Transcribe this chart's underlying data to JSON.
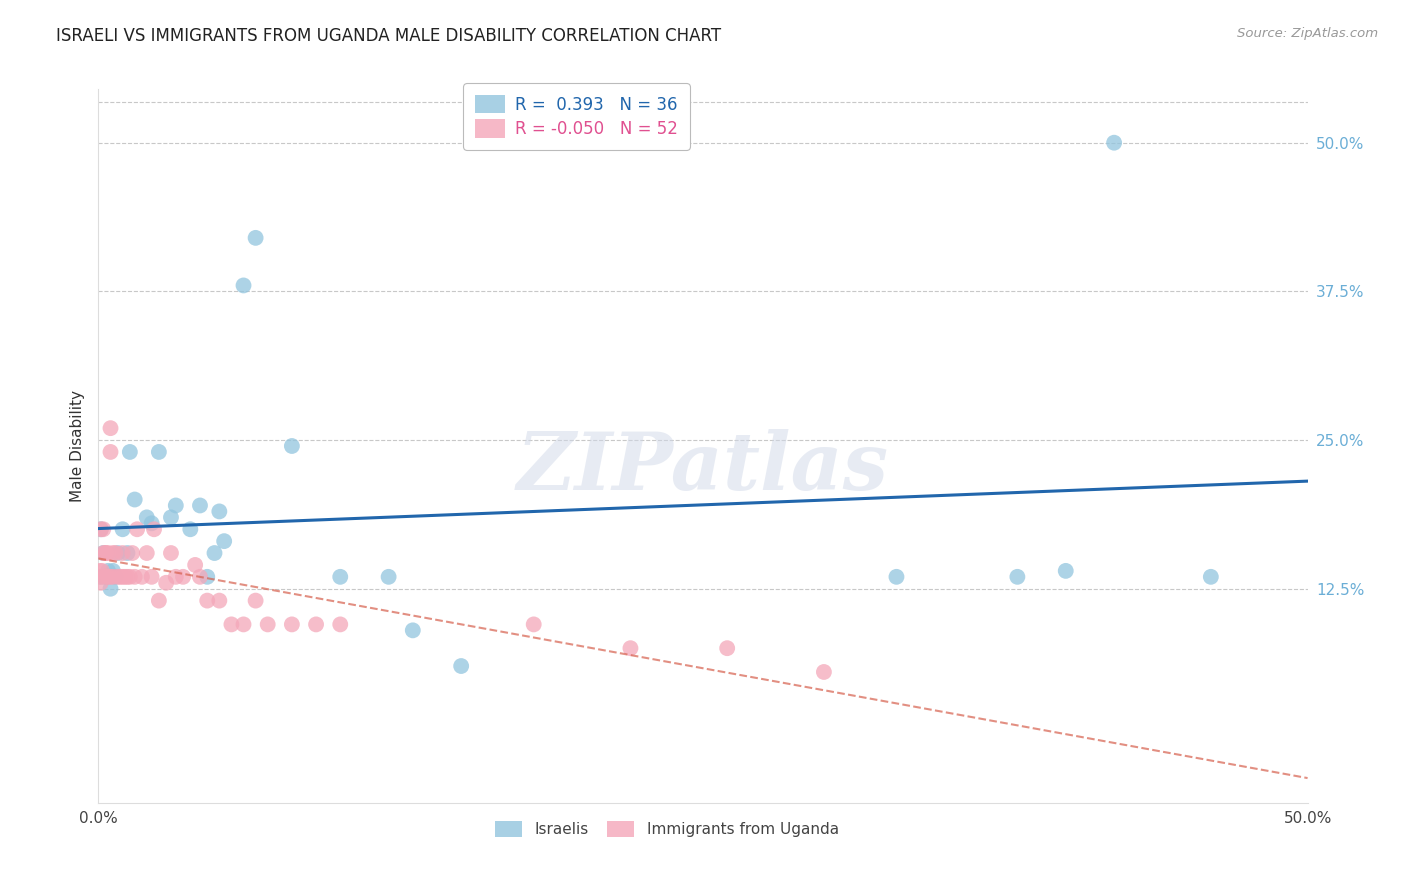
{
  "title": "ISRAELI VS IMMIGRANTS FROM UGANDA MALE DISABILITY CORRELATION CHART",
  "source": "Source: ZipAtlas.com",
  "ylabel": "Male Disability",
  "ylabel_right_labels": [
    "50.0%",
    "37.5%",
    "25.0%",
    "12.5%"
  ],
  "ylabel_right_values": [
    0.5,
    0.375,
    0.25,
    0.125
  ],
  "xmin": 0.0,
  "xmax": 0.5,
  "ymin": -0.055,
  "ymax": 0.545,
  "israeli_R": 0.393,
  "israeli_N": 36,
  "uganda_R": -0.05,
  "uganda_N": 52,
  "israeli_color": "#92c5de",
  "uganda_color": "#f4a7b9",
  "israeli_line_color": "#2166ac",
  "uganda_line_color": "#d6604d",
  "background_color": "#ffffff",
  "grid_color": "#c8c8c8",
  "watermark_text": "ZIPatlas",
  "legend_label_1": "Israelis",
  "legend_label_2": "Immigrants from Uganda",
  "israeli_x": [
    0.001,
    0.001,
    0.002,
    0.003,
    0.004,
    0.005,
    0.006,
    0.007,
    0.008,
    0.01,
    0.012,
    0.013,
    0.015,
    0.02,
    0.022,
    0.025,
    0.03,
    0.032,
    0.038,
    0.042,
    0.045,
    0.048,
    0.05,
    0.052,
    0.06,
    0.065,
    0.08,
    0.1,
    0.12,
    0.13,
    0.15,
    0.33,
    0.38,
    0.4,
    0.42,
    0.46
  ],
  "israeli_y": [
    0.135,
    0.175,
    0.155,
    0.135,
    0.14,
    0.125,
    0.14,
    0.135,
    0.155,
    0.175,
    0.155,
    0.24,
    0.2,
    0.185,
    0.18,
    0.24,
    0.185,
    0.195,
    0.175,
    0.195,
    0.135,
    0.155,
    0.19,
    0.165,
    0.38,
    0.42,
    0.245,
    0.135,
    0.135,
    0.09,
    0.06,
    0.135,
    0.135,
    0.14,
    0.5,
    0.135
  ],
  "uganda_x": [
    0.0005,
    0.001,
    0.001,
    0.001,
    0.0015,
    0.002,
    0.002,
    0.003,
    0.003,
    0.003,
    0.004,
    0.004,
    0.005,
    0.005,
    0.005,
    0.006,
    0.006,
    0.007,
    0.008,
    0.009,
    0.01,
    0.01,
    0.011,
    0.012,
    0.013,
    0.014,
    0.015,
    0.016,
    0.018,
    0.02,
    0.022,
    0.023,
    0.025,
    0.028,
    0.03,
    0.032,
    0.035,
    0.04,
    0.042,
    0.045,
    0.05,
    0.055,
    0.06,
    0.065,
    0.07,
    0.08,
    0.09,
    0.1,
    0.18,
    0.22,
    0.26,
    0.3
  ],
  "uganda_y": [
    0.14,
    0.135,
    0.13,
    0.175,
    0.14,
    0.175,
    0.155,
    0.155,
    0.155,
    0.135,
    0.155,
    0.135,
    0.24,
    0.26,
    0.135,
    0.155,
    0.135,
    0.155,
    0.135,
    0.135,
    0.155,
    0.135,
    0.135,
    0.135,
    0.135,
    0.155,
    0.135,
    0.175,
    0.135,
    0.155,
    0.135,
    0.175,
    0.115,
    0.13,
    0.155,
    0.135,
    0.135,
    0.145,
    0.135,
    0.115,
    0.115,
    0.095,
    0.095,
    0.115,
    0.095,
    0.095,
    0.095,
    0.095,
    0.095,
    0.075,
    0.075,
    0.055
  ]
}
